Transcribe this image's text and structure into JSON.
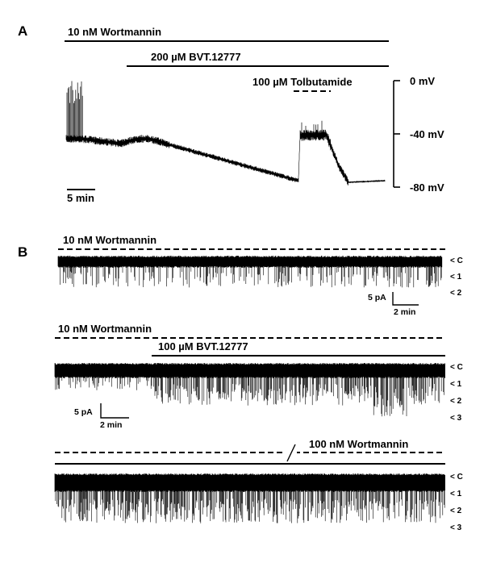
{
  "panel_a": {
    "letter": "A",
    "bars": {
      "wortmannin": "10 nM Wortmannin",
      "bvt": "200 µM BVT.12777",
      "tolbutamide": "100 µM Tolbutamide"
    },
    "voltage_axis": {
      "ticks": [
        "0 mV",
        "-40 mV",
        "-80 mV"
      ]
    },
    "time_scale": "5 min"
  },
  "panel_b": {
    "letter": "B",
    "trace1": {
      "bar_label": "10 nM Wortmannin",
      "levels": [
        "< C",
        "< 1",
        "< 2"
      ],
      "scale": {
        "current": "5 pA",
        "time": "2 min"
      }
    },
    "trace2": {
      "bar_label_1": "10 nM Wortmannin",
      "bar_label_2": "100 µM BVT.12777",
      "levels": [
        "< C",
        "< 1",
        "< 2",
        "< 3"
      ],
      "scale": {
        "current": "5 pA",
        "time": "2 min"
      }
    },
    "trace3": {
      "bar_label": "100 nM Wortmannin",
      "levels": [
        "< C",
        "< 1",
        "< 2",
        "< 3"
      ]
    }
  },
  "colors": {
    "ink": "#000000",
    "background": "#ffffff"
  }
}
